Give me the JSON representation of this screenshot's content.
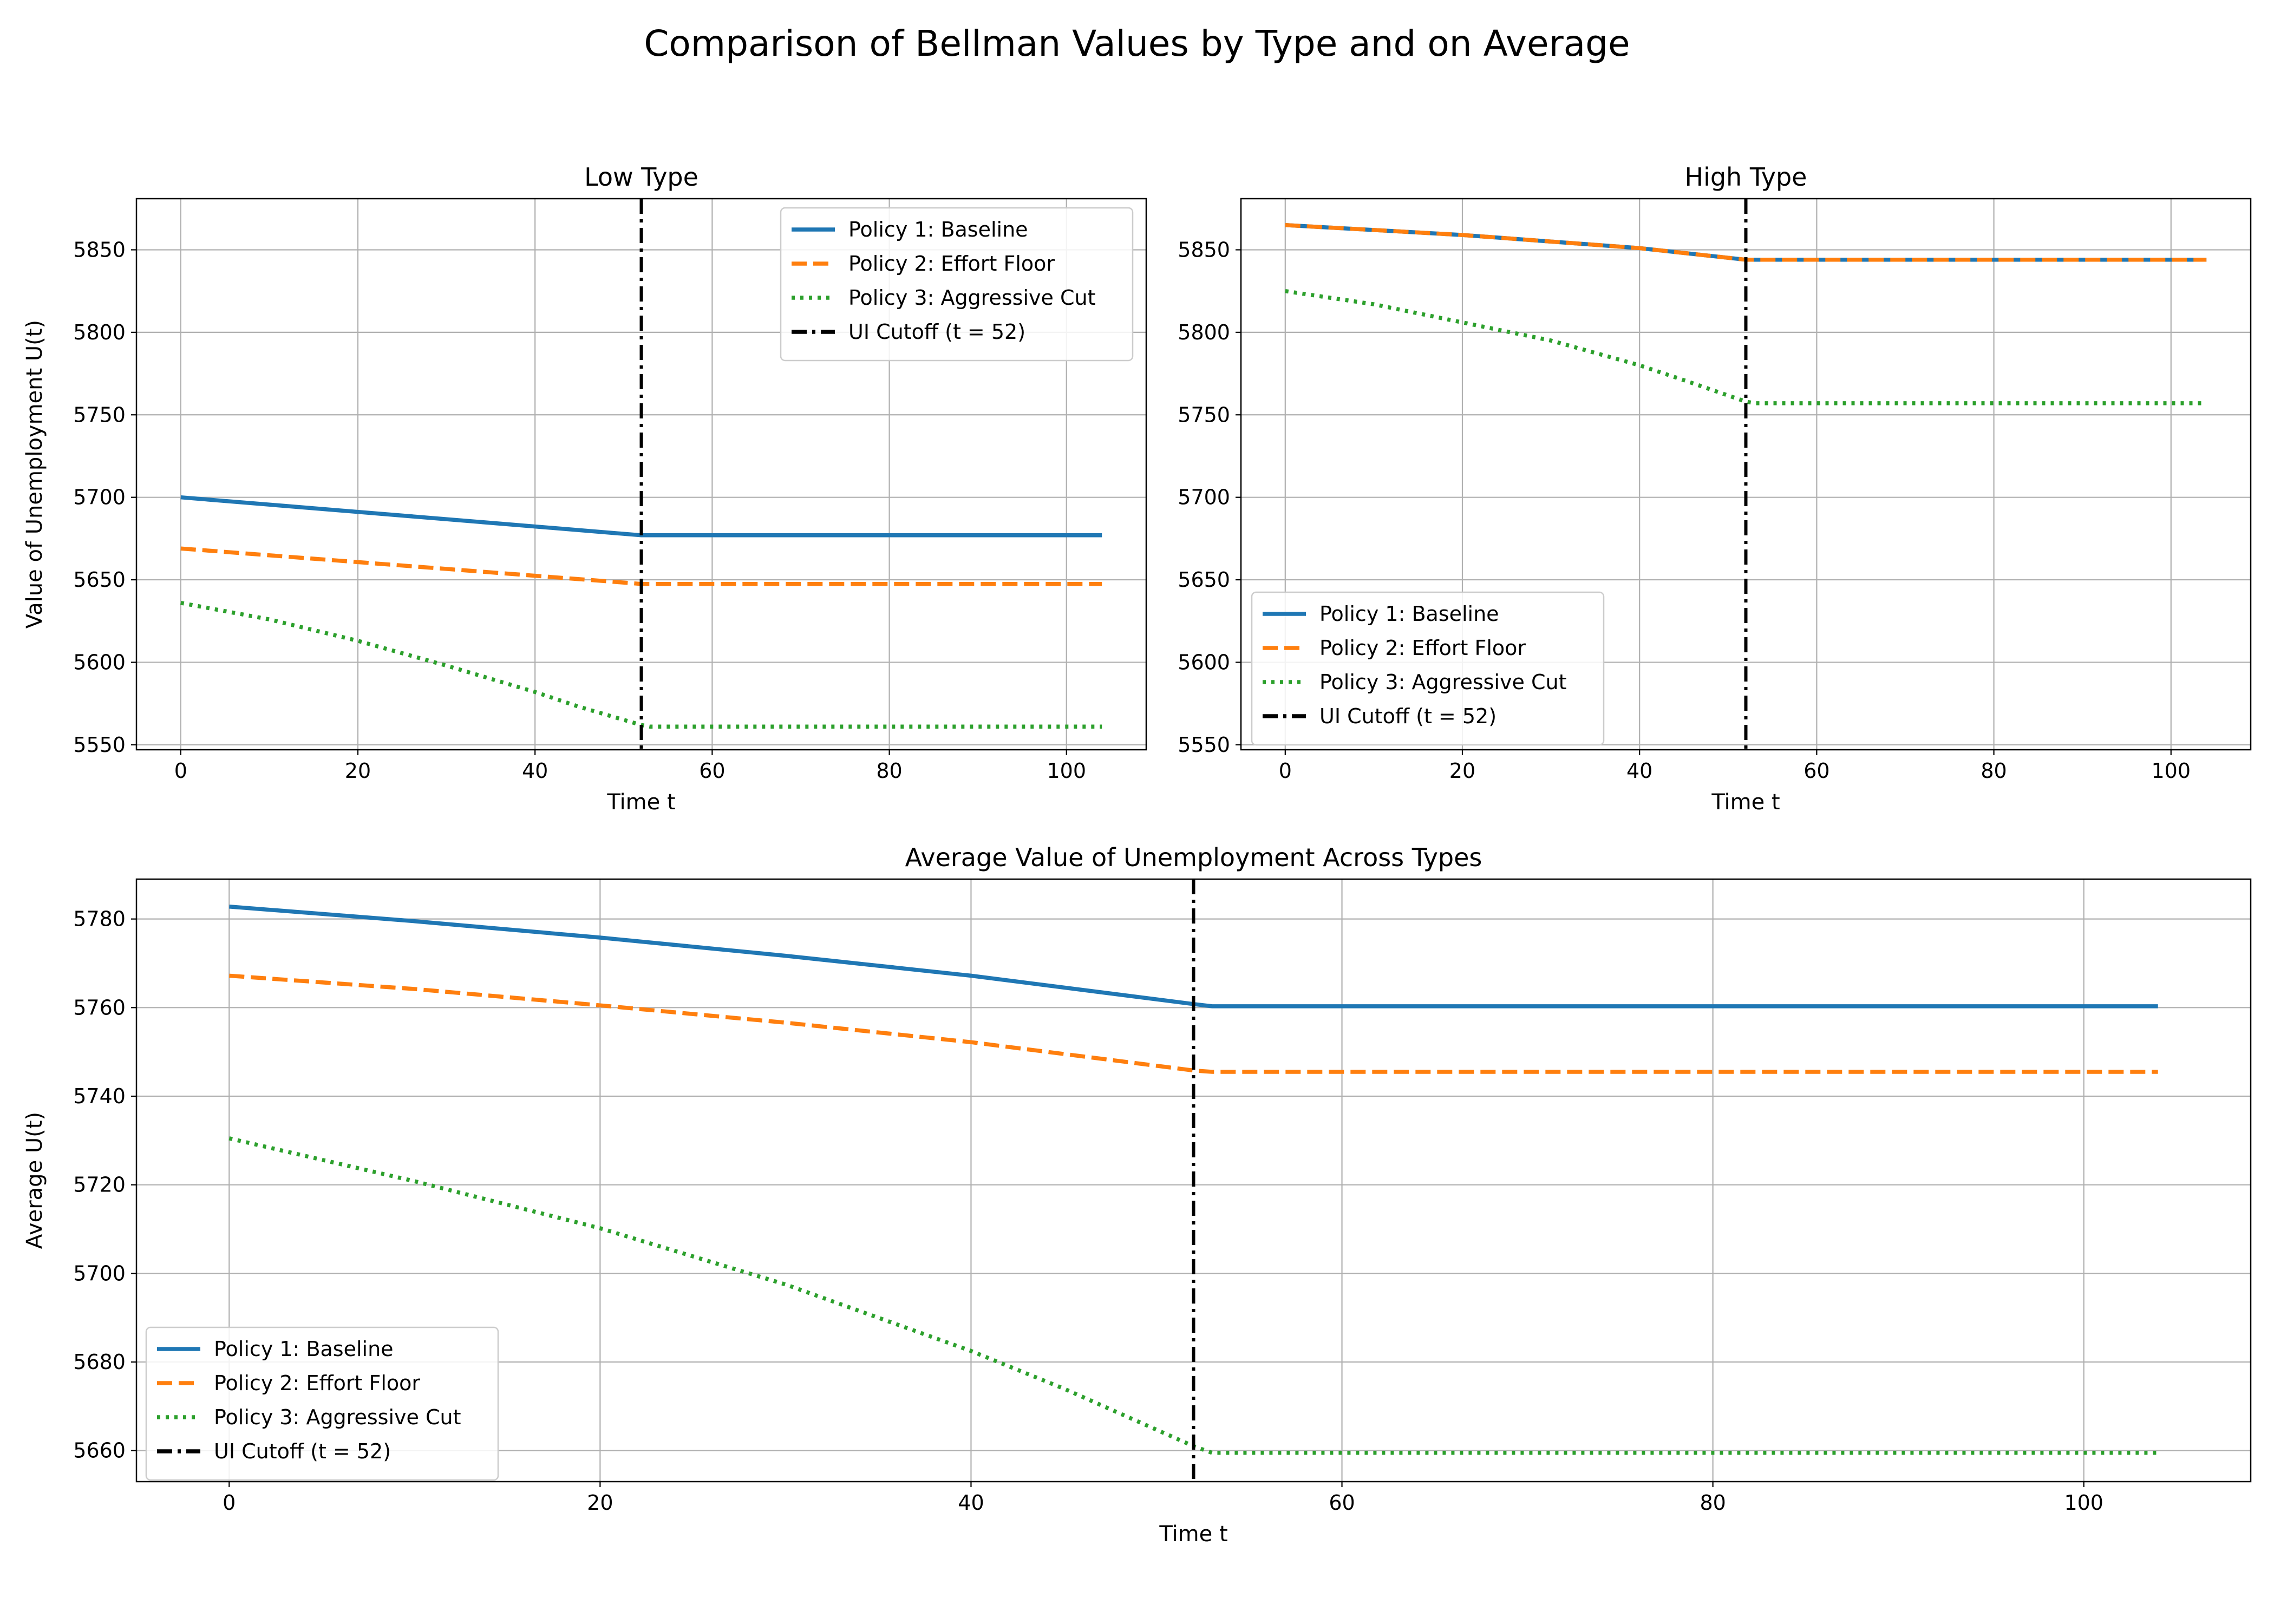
{
  "figure": {
    "title": "Comparison of Bellman Values by Type and on Average"
  },
  "series_style": [
    {
      "color": "#1f77b4",
      "dash": "solid"
    },
    {
      "color": "#ff7f0e",
      "dash": "dashed"
    },
    {
      "color": "#2ca02c",
      "dash": "dotted"
    }
  ],
  "cutoff_style": {
    "color": "#000000",
    "dash": "dashdot"
  },
  "chart_data": [
    {
      "type": "line",
      "title": "Low Type",
      "xlabel": "Time t",
      "ylabel": "Value of Unemployment U(t)",
      "xlim": [
        -5,
        109
      ],
      "ylim": [
        5547,
        5881
      ],
      "xticks": [
        0,
        20,
        40,
        60,
        80,
        100
      ],
      "yticks": [
        5550,
        5600,
        5650,
        5700,
        5750,
        5800,
        5850
      ],
      "grid": true,
      "legend_position": "upper right",
      "cutoff": {
        "x": 52,
        "label": "UI Cutoff (t = 52)"
      },
      "series": [
        {
          "name": "Policy 1: Baseline",
          "x": [
            0,
            52,
            53,
            104
          ],
          "y": [
            5700,
            5677,
            5677,
            5677
          ]
        },
        {
          "name": "Policy 2: Effort Floor",
          "x": [
            0,
            52,
            53,
            104
          ],
          "y": [
            5669,
            5647.5,
            5647.5,
            5647.5
          ]
        },
        {
          "name": "Policy 3: Aggressive Cut",
          "x": [
            0,
            10,
            20,
            30,
            40,
            45,
            52,
            53,
            104
          ],
          "y": [
            5636,
            5626,
            5613,
            5598,
            5582,
            5573,
            5562,
            5561,
            5561
          ]
        }
      ]
    },
    {
      "type": "line",
      "title": "High Type",
      "xlabel": "Time t",
      "ylabel": "",
      "xlim": [
        -5,
        109
      ],
      "ylim": [
        5547,
        5881
      ],
      "xticks": [
        0,
        20,
        40,
        60,
        80,
        100
      ],
      "yticks": [
        5550,
        5600,
        5650,
        5700,
        5750,
        5800,
        5850
      ],
      "grid": true,
      "legend_position": "lower left",
      "cutoff": {
        "x": 52,
        "label": "UI Cutoff (t = 52)"
      },
      "series": [
        {
          "name": "Policy 1: Baseline",
          "x": [
            0,
            10,
            20,
            30,
            40,
            52,
            53,
            104
          ],
          "y": [
            5865,
            5862,
            5859,
            5855,
            5851,
            5844,
            5844,
            5844
          ]
        },
        {
          "name": "Policy 2: Effort Floor",
          "x": [
            0,
            10,
            20,
            30,
            40,
            52,
            53,
            104
          ],
          "y": [
            5865,
            5862,
            5859,
            5855,
            5851,
            5844,
            5844,
            5844
          ]
        },
        {
          "name": "Policy 3: Aggressive Cut",
          "x": [
            0,
            10,
            20,
            30,
            40,
            45,
            52,
            53,
            104
          ],
          "y": [
            5825,
            5817,
            5806,
            5795,
            5780,
            5771,
            5758,
            5757,
            5757
          ]
        }
      ]
    },
    {
      "type": "line",
      "title": "Average Value of Unemployment Across Types",
      "xlabel": "Time t",
      "ylabel": "Average U(t)",
      "xlim": [
        -5,
        109
      ],
      "ylim": [
        5653,
        5789
      ],
      "xticks": [
        0,
        20,
        40,
        60,
        80,
        100
      ],
      "yticks": [
        5660,
        5680,
        5700,
        5720,
        5740,
        5760,
        5780
      ],
      "grid": true,
      "legend_position": "lower left",
      "cutoff": {
        "x": 52,
        "label": "UI Cutoff (t = 52)"
      },
      "series": [
        {
          "name": "Policy 1: Baseline",
          "x": [
            0,
            10,
            20,
            30,
            40,
            52,
            53,
            104
          ],
          "y": [
            5782.8,
            5779.5,
            5775.8,
            5771.7,
            5767.2,
            5760.8,
            5760.3,
            5760.3
          ]
        },
        {
          "name": "Policy 2: Effort Floor",
          "x": [
            0,
            10,
            20,
            30,
            40,
            52,
            53,
            104
          ],
          "y": [
            5767.2,
            5764.2,
            5760.5,
            5756.6,
            5752.2,
            5745.8,
            5745.5,
            5745.5
          ]
        },
        {
          "name": "Policy 3: Aggressive Cut",
          "x": [
            0,
            10,
            20,
            30,
            40,
            45,
            52,
            53,
            104
          ],
          "y": [
            5730.5,
            5720.8,
            5710.2,
            5697.5,
            5682.5,
            5674,
            5661,
            5659.5,
            5659.5
          ]
        }
      ]
    }
  ]
}
